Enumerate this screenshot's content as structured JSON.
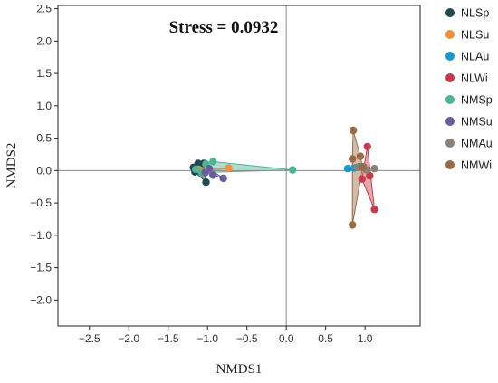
{
  "chart_data": {
    "type": "scatter",
    "xlabel": "NMDS1",
    "ylabel": "NMDS2",
    "xlim": [
      -2.9,
      1.7
    ],
    "ylim": [
      -2.4,
      2.55
    ],
    "xticks": [
      -2.5,
      -2.0,
      -1.5,
      -1.0,
      -0.5,
      0.0,
      0.5,
      1.0
    ],
    "xtick_labels": [
      "−2.5",
      "−2.0",
      "−1.5",
      "−1.0",
      "−0.5",
      "0.0",
      "0.5",
      "1.0"
    ],
    "yticks": [
      2.5,
      2.0,
      1.5,
      1.0,
      0.5,
      0.0,
      -0.5,
      -1.0,
      -1.5,
      -2.0
    ],
    "ytick_labels": [
      "2.5",
      "2.0",
      "1.5",
      "1.0",
      "0.5",
      "0.0",
      "−0.5",
      "−1.0",
      "−1.5",
      "−2.0"
    ],
    "reference_lines": {
      "x": 0,
      "y": 0
    },
    "annotation": "Stress = 0.0932",
    "grid": false,
    "legend_position": "right",
    "series": [
      {
        "name": "NLSp",
        "color": "#1f4a52",
        "hull": true,
        "points": [
          [
            -1.18,
            0.05
          ],
          [
            -1.12,
            0.11
          ],
          [
            -1.05,
            0.11
          ],
          [
            -1.02,
            -0.18
          ],
          [
            -1.16,
            -0.02
          ]
        ]
      },
      {
        "name": "NLSu",
        "color": "#f28e3c",
        "hull": true,
        "points": [
          [
            -0.73,
            0.04
          ],
          [
            -1.05,
            -0.02
          ],
          [
            -1.12,
            0.02
          ]
        ]
      },
      {
        "name": "NLAu",
        "color": "#1a96cc",
        "hull": true,
        "points": [
          [
            0.78,
            0.03
          ],
          [
            0.86,
            0.04
          ],
          [
            0.93,
            0.06
          ]
        ]
      },
      {
        "name": "NLWi",
        "color": "#c83a4a",
        "hull": true,
        "points": [
          [
            1.03,
            0.37
          ],
          [
            1.12,
            -0.6
          ],
          [
            0.96,
            -0.13
          ],
          [
            1.06,
            -0.08
          ]
        ]
      },
      {
        "name": "NMSp",
        "color": "#4db592",
        "hull": true,
        "points": [
          [
            0.08,
            0.01
          ],
          [
            -0.93,
            0.14
          ],
          [
            -1.07,
            -0.03
          ],
          [
            -1.15,
            0.02
          ],
          [
            -1.02,
            0.1
          ]
        ]
      },
      {
        "name": "NMSu",
        "color": "#6a5a9e",
        "hull": true,
        "points": [
          [
            -0.8,
            -0.12
          ],
          [
            -1.03,
            -0.03
          ],
          [
            -0.98,
            0.03
          ],
          [
            -0.93,
            -0.07
          ]
        ]
      },
      {
        "name": "NMAu",
        "color": "#8c8176",
        "hull": true,
        "points": [
          [
            0.9,
            0.05
          ],
          [
            0.98,
            0.06
          ],
          [
            1.12,
            0.03
          ],
          [
            1.02,
            0.01
          ]
        ]
      },
      {
        "name": "NMWi",
        "color": "#9a6a45",
        "hull": true,
        "points": [
          [
            0.85,
            0.62
          ],
          [
            0.84,
            -0.84
          ],
          [
            0.84,
            0.18
          ],
          [
            0.94,
            0.22
          ],
          [
            0.97,
            0.05
          ]
        ]
      }
    ]
  }
}
